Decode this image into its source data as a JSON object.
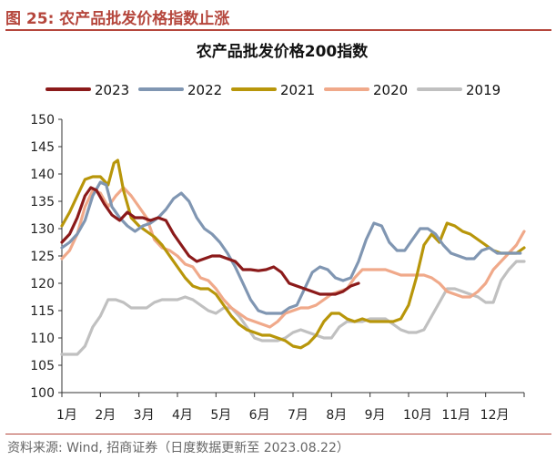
{
  "figure": {
    "title": "图 25:  农产品批发价格指数止涨",
    "source": "资料来源:  Wind,  招商证券（日度数据更新至 2023.08.22）"
  },
  "chart_data": {
    "type": "line",
    "title": "农产品批发价格200指数",
    "xlabel": "",
    "ylabel": "",
    "ylim": [
      100,
      150
    ],
    "yticks": [
      100,
      105,
      110,
      115,
      120,
      125,
      130,
      135,
      140,
      145,
      150
    ],
    "xlim": [
      1,
      13
    ],
    "month_labels": [
      "1月",
      "2月",
      "3月",
      "4月",
      "5月",
      "6月",
      "7月",
      "8月",
      "9月",
      "10月",
      "11月",
      "12月"
    ],
    "grid": false,
    "legend_position": "top",
    "series": [
      {
        "name": "2023",
        "color": "#8b1a1a",
        "x": [
          1.0,
          1.2,
          1.4,
          1.6,
          1.75,
          1.9,
          2.1,
          2.3,
          2.5,
          2.7,
          2.9,
          3.1,
          3.3,
          3.5,
          3.7,
          3.9,
          4.1,
          4.3,
          4.5,
          4.7,
          4.9,
          5.1,
          5.3,
          5.5,
          5.7,
          5.9,
          6.1,
          6.3,
          6.5,
          6.7,
          6.9,
          7.1,
          7.3,
          7.5,
          7.7,
          7.9,
          8.1,
          8.3,
          8.5,
          8.7
        ],
        "y": [
          127.5,
          129,
          132,
          136,
          137.5,
          137,
          134.5,
          132.5,
          131.5,
          133,
          132,
          132,
          131.5,
          132,
          131.5,
          129,
          127,
          125,
          124,
          124.5,
          125,
          125,
          124.5,
          124,
          122.5,
          122.5,
          122.3,
          122.5,
          123,
          122,
          120,
          119.5,
          119,
          118.5,
          118,
          118,
          118,
          118.5,
          119.5,
          120
        ]
      },
      {
        "name": "2022",
        "color": "#8096b2",
        "x": [
          1.0,
          1.2,
          1.4,
          1.6,
          1.8,
          2.0,
          2.15,
          2.3,
          2.5,
          2.7,
          2.9,
          3.1,
          3.3,
          3.5,
          3.7,
          3.9,
          4.1,
          4.3,
          4.5,
          4.7,
          4.9,
          5.1,
          5.3,
          5.5,
          5.7,
          5.9,
          6.1,
          6.3,
          6.5,
          6.7,
          6.9,
          7.1,
          7.3,
          7.5,
          7.7,
          7.9,
          8.1,
          8.3,
          8.5,
          8.7,
          8.9,
          9.1,
          9.3,
          9.5,
          9.7,
          9.9,
          10.1,
          10.3,
          10.5,
          10.7,
          10.9,
          11.1,
          11.3,
          11.5,
          11.7,
          11.9,
          12.1,
          12.3,
          12.5,
          12.7,
          12.9
        ],
        "y": [
          126.5,
          127.5,
          129,
          131.5,
          136,
          138.5,
          138,
          134,
          132,
          130.5,
          129.5,
          130.5,
          131,
          132,
          133.5,
          135.5,
          136.5,
          135,
          132,
          130,
          129,
          127.5,
          125.5,
          123,
          120,
          117,
          115,
          114.5,
          114.5,
          114.5,
          115.5,
          116,
          119,
          122,
          123,
          122.5,
          121,
          120.5,
          121,
          124,
          128,
          131,
          130.5,
          127.5,
          126,
          126,
          128,
          130,
          130,
          129,
          127,
          125.5,
          125,
          124.5,
          124.5,
          126,
          126.5,
          125.5,
          125.5,
          125.5,
          125.5
        ]
      },
      {
        "name": "2021",
        "color": "#b8960a",
        "x": [
          1.0,
          1.2,
          1.4,
          1.6,
          1.8,
          2.0,
          2.2,
          2.35,
          2.45,
          2.6,
          2.8,
          3.0,
          3.2,
          3.4,
          3.6,
          3.8,
          4.0,
          4.2,
          4.4,
          4.6,
          4.8,
          5.0,
          5.2,
          5.4,
          5.6,
          5.8,
          6.0,
          6.2,
          6.4,
          6.6,
          6.8,
          7.0,
          7.2,
          7.4,
          7.6,
          7.8,
          8.0,
          8.2,
          8.4,
          8.6,
          8.8,
          9.0,
          9.2,
          9.4,
          9.6,
          9.8,
          10.0,
          10.2,
          10.4,
          10.6,
          10.8,
          11.0,
          11.2,
          11.4,
          11.6,
          11.8,
          12.0,
          12.2,
          12.4,
          12.6,
          12.8,
          13.0
        ],
        "y": [
          130.5,
          133,
          136,
          139,
          139.5,
          139.5,
          138,
          142,
          142.5,
          137,
          132,
          130.5,
          129.5,
          128.5,
          127,
          125,
          123,
          121,
          119.5,
          119,
          119,
          118,
          116,
          114,
          112.5,
          111.5,
          111,
          110.5,
          110.5,
          110,
          109.5,
          108.5,
          108.2,
          109,
          110.5,
          113,
          114.5,
          114.5,
          113.5,
          113,
          113.5,
          113,
          113,
          113,
          113,
          113.5,
          116,
          121,
          127,
          129,
          127.5,
          131,
          130.5,
          129.5,
          129,
          128,
          127,
          126,
          125.5,
          125.5,
          125.5,
          126.5
        ]
      },
      {
        "name": "2020",
        "color": "#f0a98a",
        "x": [
          1.0,
          1.2,
          1.4,
          1.6,
          1.8,
          2.0,
          2.2,
          2.4,
          2.6,
          2.8,
          3.0,
          3.2,
          3.4,
          3.6,
          3.8,
          4.0,
          4.2,
          4.4,
          4.6,
          4.8,
          5.0,
          5.2,
          5.4,
          5.6,
          5.8,
          6.0,
          6.2,
          6.4,
          6.6,
          6.8,
          7.0,
          7.2,
          7.4,
          7.6,
          7.8,
          8.0,
          8.2,
          8.4,
          8.6,
          8.8,
          9.0,
          9.2,
          9.4,
          9.6,
          9.8,
          10.0,
          10.2,
          10.4,
          10.6,
          10.8,
          11.0,
          11.2,
          11.4,
          11.6,
          11.8,
          12.0,
          12.2,
          12.4,
          12.6,
          12.8,
          13.0
        ],
        "y": [
          124.5,
          126,
          129,
          134,
          137,
          136.5,
          134,
          136,
          137.5,
          136,
          134,
          132,
          128,
          126.5,
          126,
          125,
          123.5,
          123,
          121,
          120.5,
          119,
          117,
          115.5,
          114.5,
          113.5,
          113,
          112.5,
          112,
          113,
          114.5,
          115,
          115.5,
          115.5,
          116,
          117,
          118,
          118.5,
          119,
          121,
          122.5,
          122.5,
          122.5,
          122.5,
          122,
          121.5,
          121.5,
          121.5,
          121.5,
          121,
          120,
          118.5,
          118,
          117.5,
          117.5,
          118.5,
          120,
          122.5,
          124,
          125.5,
          127,
          129.5
        ]
      },
      {
        "name": "2019",
        "color": "#c0c0c0",
        "x": [
          1.0,
          1.2,
          1.4,
          1.6,
          1.8,
          2.0,
          2.2,
          2.4,
          2.6,
          2.8,
          3.0,
          3.2,
          3.4,
          3.6,
          3.8,
          4.0,
          4.2,
          4.4,
          4.6,
          4.8,
          5.0,
          5.2,
          5.4,
          5.6,
          5.8,
          6.0,
          6.2,
          6.4,
          6.6,
          6.8,
          7.0,
          7.2,
          7.4,
          7.6,
          7.8,
          8.0,
          8.2,
          8.4,
          8.6,
          8.8,
          9.0,
          9.2,
          9.4,
          9.6,
          9.8,
          10.0,
          10.2,
          10.4,
          10.6,
          10.8,
          11.0,
          11.2,
          11.4,
          11.6,
          11.8,
          12.0,
          12.2,
          12.4,
          12.6,
          12.8,
          13.0
        ],
        "y": [
          107,
          107,
          107,
          108.5,
          112,
          114,
          117,
          117,
          116.5,
          115.5,
          115.5,
          115.5,
          116.5,
          117,
          117,
          117,
          117.5,
          117,
          116,
          115,
          114.5,
          115.5,
          115.5,
          114,
          112,
          110,
          109.5,
          109.5,
          109.5,
          110,
          111,
          111.5,
          111,
          110.5,
          110,
          110,
          112,
          113,
          113,
          113,
          113.5,
          113.5,
          113.5,
          112.5,
          111.5,
          111,
          111,
          111.5,
          114,
          116.5,
          119,
          119,
          118.5,
          118,
          117.5,
          116.5,
          116.5,
          120.5,
          122.5,
          124,
          124
        ]
      }
    ]
  }
}
